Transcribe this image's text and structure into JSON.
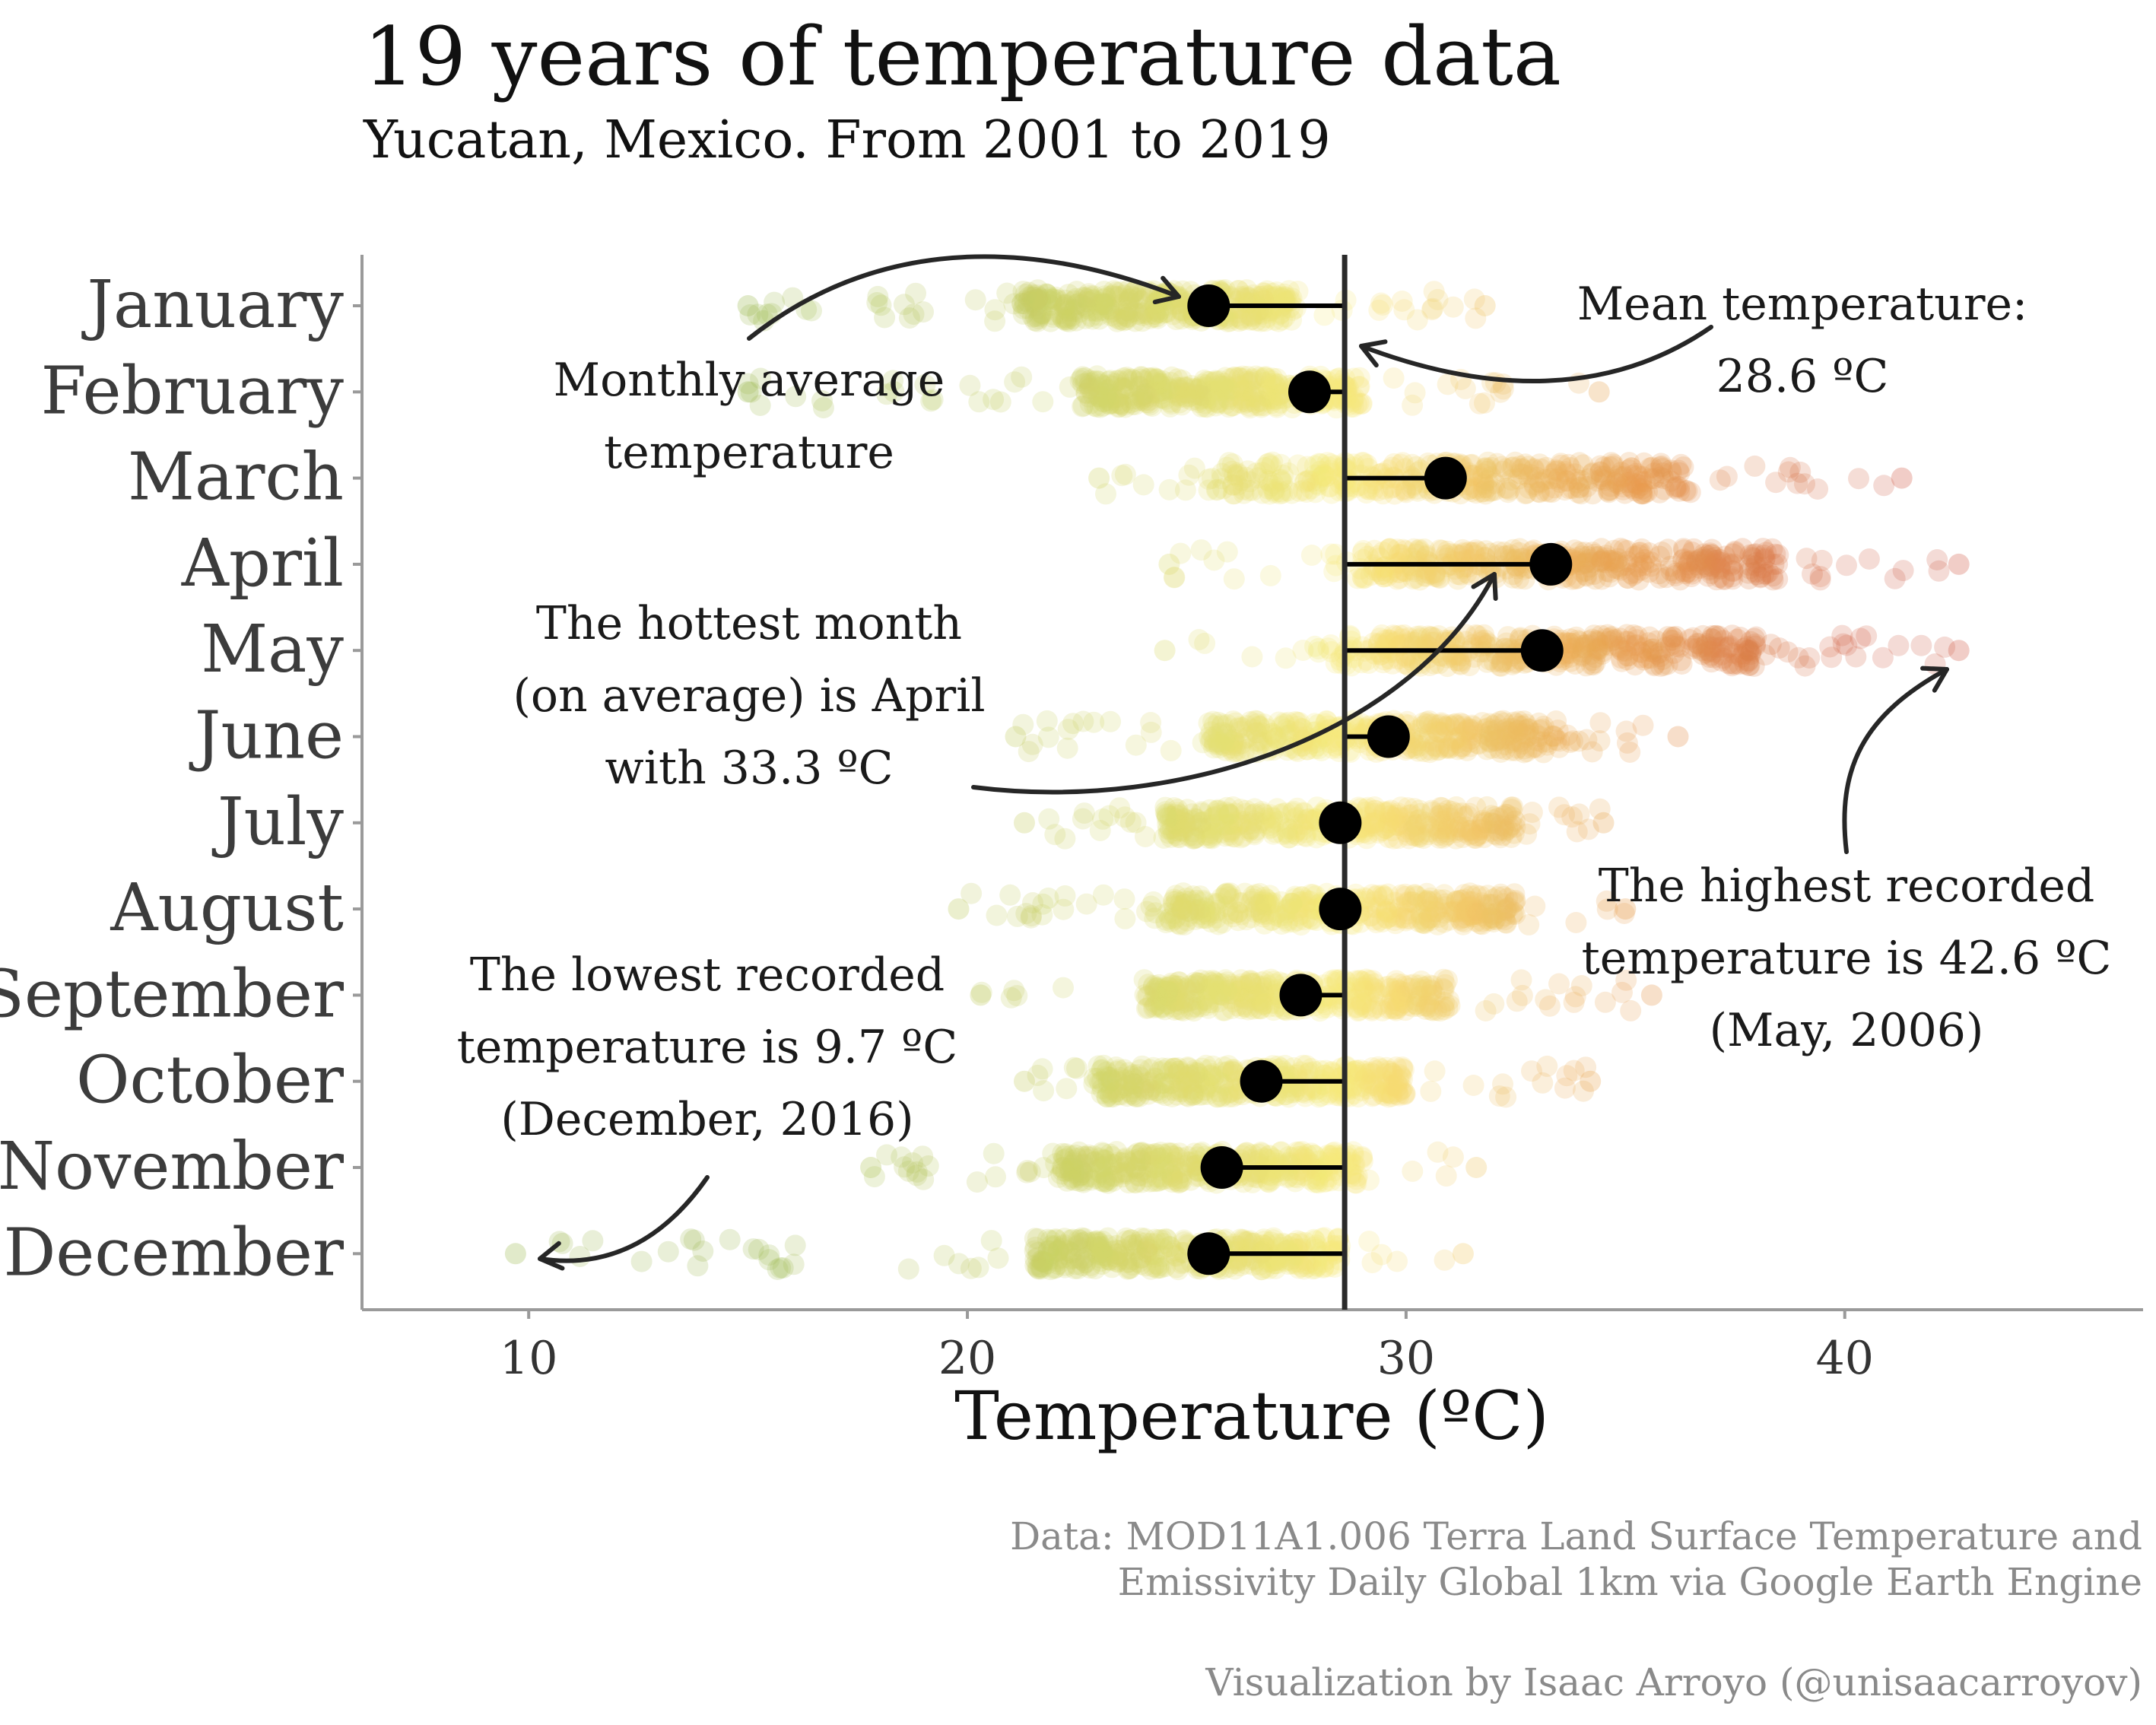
{
  "title": "19 years of temperature data",
  "subtitle": "Yucatan, Mexico. From 2001 to 2019",
  "caption": {
    "data_line1": "Data: MOD11A1.006 Terra Land Surface Temperature and",
    "data_line2": "Emissivity Daily Global 1km via Google Earth Engine",
    "credit": "Visualization by Isaac Arroyo (@unisaacarroyov)"
  },
  "chart_data": {
    "type": "scatter",
    "xlabel": "Temperature (ºC)",
    "ylabel": "",
    "xlim": [
      6.2,
      46.8
    ],
    "xticks": [
      10,
      20,
      30,
      40
    ],
    "grid": false,
    "legend": "none",
    "mean_temperature": 28.6,
    "categories": [
      "January",
      "February",
      "March",
      "April",
      "May",
      "June",
      "July",
      "August",
      "September",
      "October",
      "November",
      "December"
    ],
    "monthly_average": [
      25.5,
      27.8,
      30.9,
      33.3,
      33.1,
      29.6,
      28.5,
      28.5,
      27.6,
      26.7,
      25.8,
      25.5
    ],
    "observed_range": [
      [
        15.0,
        31.8
      ],
      [
        15.0,
        34.4
      ],
      [
        23.0,
        41.3
      ],
      [
        24.6,
        42.6
      ],
      [
        24.5,
        42.6
      ],
      [
        21.1,
        36.2
      ],
      [
        21.3,
        34.5
      ],
      [
        19.8,
        35.0
      ],
      [
        20.3,
        35.6
      ],
      [
        21.3,
        34.2
      ],
      [
        17.8,
        31.6
      ],
      [
        9.7,
        31.3
      ]
    ],
    "observed_spread": [
      [
        21.2,
        27.5
      ],
      [
        22.5,
        29.0
      ],
      [
        25.5,
        36.5
      ],
      [
        29.0,
        38.5
      ],
      [
        28.5,
        38.0
      ],
      [
        25.5,
        33.5
      ],
      [
        24.5,
        32.5
      ],
      [
        24.5,
        32.5
      ],
      [
        24.0,
        31.0
      ],
      [
        23.0,
        30.0
      ],
      [
        22.0,
        29.0
      ],
      [
        21.5,
        28.5
      ]
    ],
    "color_scale": {
      "cool": "#9cb84e",
      "mid": "#f7e87a",
      "warm": "#e8a050",
      "hot": "#cf5a45"
    },
    "annotations": {
      "monthly_avg": [
        "Monthly average",
        "temperature"
      ],
      "mean": [
        "Mean temperature:",
        "28.6 ºC"
      ],
      "hottest": [
        "The hottest month",
        "(on average) is April",
        "with 33.3 ºC"
      ],
      "highest": [
        "The highest recorded",
        "temperature is 42.6 ºC",
        "(May, 2006)"
      ],
      "lowest": [
        "The lowest recorded",
        "temperature is 9.7 ºC",
        "(December, 2016)"
      ]
    }
  }
}
